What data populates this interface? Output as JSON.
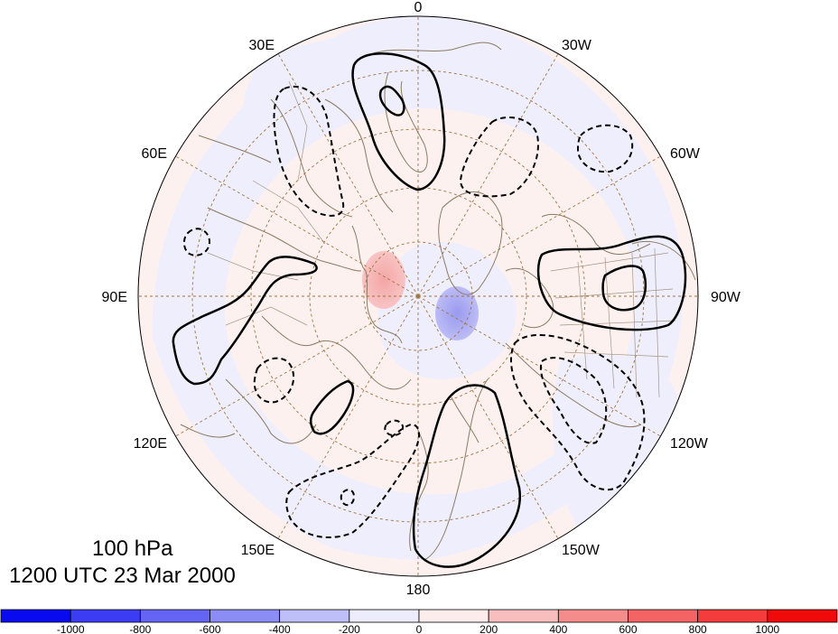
{
  "map": {
    "projection": "north-polar-stereographic",
    "meridian_labels": [
      {
        "text": "0",
        "lon": 0
      },
      {
        "text": "30W",
        "lon": -30
      },
      {
        "text": "60W",
        "lon": -60
      },
      {
        "text": "90W",
        "lon": -90
      },
      {
        "text": "120W",
        "lon": -120
      },
      {
        "text": "150W",
        "lon": -150
      },
      {
        "text": "180",
        "lon": 180
      },
      {
        "text": "150E",
        "lon": 150
      },
      {
        "text": "120E",
        "lon": 120
      },
      {
        "text": "90E",
        "lon": 90
      },
      {
        "text": "60E",
        "lon": 60
      },
      {
        "text": "30E",
        "lon": 30
      }
    ],
    "latitude_circles": [
      30,
      45,
      60,
      75
    ],
    "colors": {
      "graticule": "#a0743f",
      "coast": "#8c7a62",
      "contour": "#000000"
    }
  },
  "titles": {
    "level": "100 hPa",
    "time": "1200 UTC 23 Mar 2000"
  },
  "colorbar": {
    "tick_labels": [
      "-1000",
      "-800",
      "-600",
      "-400",
      "-200",
      "0",
      "200",
      "400",
      "600",
      "800",
      "1000"
    ],
    "colors": [
      "#0a0af0",
      "#3c3cf5",
      "#6464f5",
      "#8c8cf5",
      "#bebef8",
      "#ececfd",
      "#fdecec",
      "#f8bebe",
      "#f58c8c",
      "#f56464",
      "#f53c3c",
      "#f00a0a"
    ]
  }
}
